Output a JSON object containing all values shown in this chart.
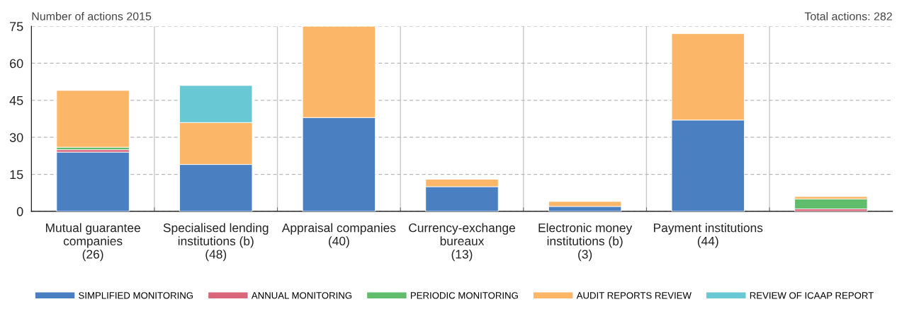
{
  "chart_data": {
    "type": "bar",
    "stacked": true,
    "title": "Number of actions 2015",
    "annotations": [
      "Total actions: 282"
    ],
    "categories": [
      "Mutual guarantee\ncompanies\n(26)",
      "Specialised lending\ninstitutions (b)\n(48)",
      "Appraisal companies\n(40)",
      "Currency-exchange\nbureaux\n(13)",
      "Electronic money\ninstitutions (b)\n(3)",
      "Payment institutions\n(44)",
      null
    ],
    "series": [
      {
        "name": "SIMPLIFIED MONITORING",
        "color": "#4a7fc1",
        "values": [
          24,
          19,
          38,
          10,
          2,
          37,
          null
        ]
      },
      {
        "name": "ANNUAL MONITORING",
        "color": "#d9667a",
        "values": [
          1,
          null,
          null,
          null,
          null,
          null,
          1
        ]
      },
      {
        "name": "PERIODIC MONITORING",
        "color": "#5fbd6c",
        "values": [
          1,
          null,
          null,
          null,
          null,
          null,
          4
        ]
      },
      {
        "name": "AUDIT REPORTS REVIEW",
        "color": "#fbb767",
        "values": [
          23,
          17,
          37,
          3,
          2,
          35,
          1
        ]
      },
      {
        "name": "REVIEW OF ICAAP REPORT",
        "color": "#68c8d4",
        "values": [
          null,
          15,
          null,
          null,
          null,
          null,
          null
        ]
      }
    ],
    "ylim": [
      0,
      75
    ],
    "yticks": [
      0,
      15,
      30,
      45,
      60,
      75
    ],
    "grid": true,
    "legend": "bottom"
  }
}
